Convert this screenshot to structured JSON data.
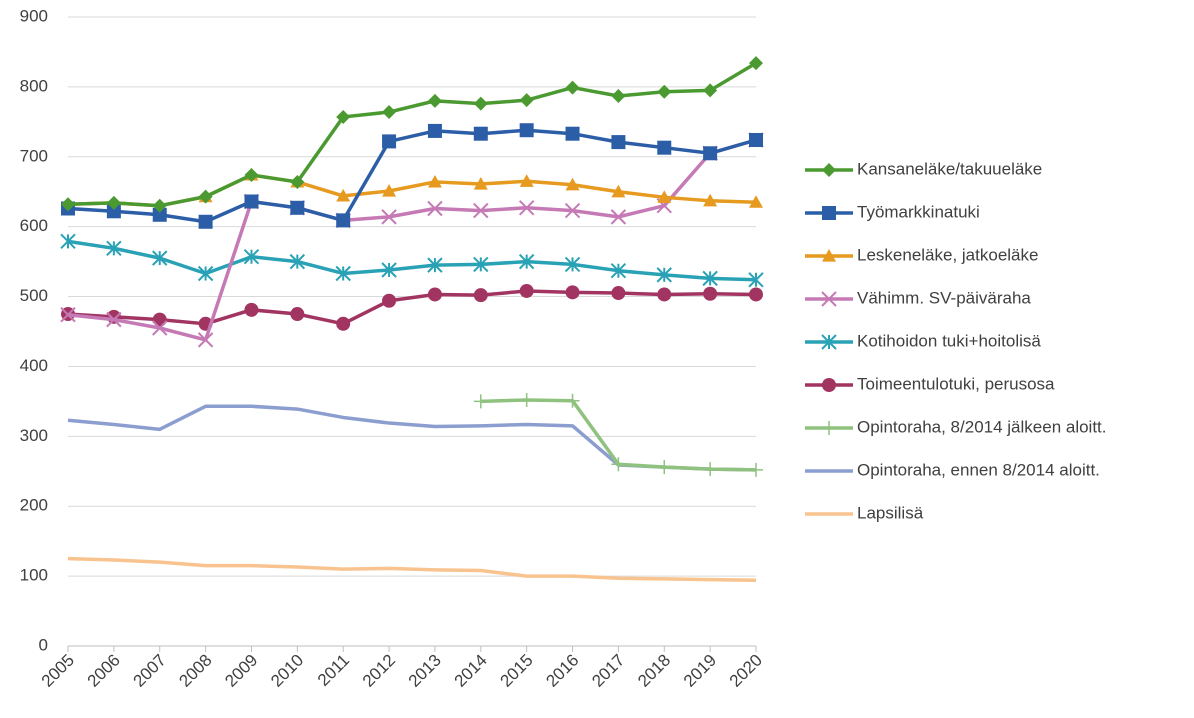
{
  "chart_data": {
    "type": "line",
    "categories": [
      "2005",
      "2006",
      "2007",
      "2008",
      "2009",
      "2010",
      "2011",
      "2012",
      "2013",
      "2014",
      "2015",
      "2016",
      "2017",
      "2018",
      "2019",
      "2020"
    ],
    "ylim": [
      0,
      900
    ],
    "yticks": [
      0,
      100,
      200,
      300,
      400,
      500,
      600,
      700,
      800,
      900
    ],
    "grid": true,
    "legend": "right",
    "series": [
      {
        "name": "Kansaneläke/takuueläke",
        "color": "#4b9a31",
        "marker": "diamond",
        "values": [
          632,
          634,
          630,
          643,
          674,
          664,
          757,
          764,
          780,
          776,
          781,
          799,
          787,
          793,
          795,
          834
        ]
      },
      {
        "name": "Työmarkkinatuki",
        "color": "#2c5ea8",
        "marker": "square",
        "values": [
          626,
          622,
          617,
          607,
          636,
          627,
          609,
          722,
          737,
          733,
          738,
          733,
          721,
          713,
          705,
          724
        ]
      },
      {
        "name": "Leskeneläke, jatkoeläke",
        "color": "#e69a1f",
        "marker": "triangle",
        "values": [
          632,
          634,
          630,
          643,
          674,
          664,
          644,
          651,
          664,
          661,
          665,
          660,
          650,
          642,
          637,
          635
        ]
      },
      {
        "name": "Vähimm. SV-päiväraha",
        "color": "#c57ab5",
        "marker": "x",
        "values": [
          474,
          467,
          455,
          438,
          636,
          627,
          609,
          614,
          626,
          623,
          627,
          623,
          614,
          630,
          705,
          724
        ]
      },
      {
        "name": "Kotihoidon tuki+hoitolisä",
        "color": "#2aa2b6",
        "marker": "asterisk",
        "values": [
          579,
          569,
          555,
          533,
          557,
          550,
          533,
          538,
          545,
          546,
          550,
          546,
          537,
          531,
          526,
          524
        ]
      },
      {
        "name": "Toimeentulotuki, perusosa",
        "color": "#a23462",
        "marker": "circle",
        "values": [
          475,
          471,
          467,
          461,
          481,
          475,
          461,
          494,
          503,
          502,
          508,
          506,
          505,
          503,
          504,
          503
        ]
      },
      {
        "name": "Opintoraha, 8/2014 jälkeen aloitt.",
        "color": "#8fc27e",
        "marker": "plus",
        "values": [
          null,
          null,
          null,
          null,
          null,
          null,
          null,
          null,
          null,
          350,
          352,
          351,
          260,
          256,
          253,
          252
        ]
      },
      {
        "name": "Opintoraha, ennen 8/2014 aloitt.",
        "color": "#8b9ecf",
        "marker": "none",
        "values": [
          323,
          317,
          310,
          343,
          343,
          339,
          327,
          319,
          314,
          315,
          317,
          315,
          259,
          256,
          253,
          252
        ]
      },
      {
        "name": "Lapsilisä",
        "color": "#f8c38f",
        "marker": "none",
        "values": [
          125,
          123,
          120,
          115,
          115,
          113,
          110,
          111,
          109,
          108,
          100,
          100,
          97,
          96,
          95,
          94
        ]
      }
    ]
  }
}
